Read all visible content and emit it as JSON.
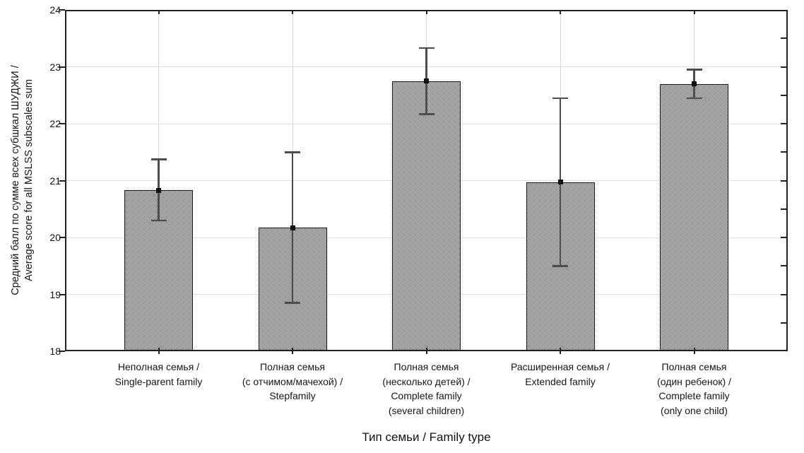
{
  "figure": {
    "background": "#ffffff"
  },
  "chart_data": {
    "type": "bar",
    "title": "",
    "xlabel": "Тип семьи / Family type",
    "ylabel": "Средний балл по сумме всех субшкал ШУДЖИ / Average score for all MSLSS subscales sum",
    "ylabel_lines": [
      "Средний балл по сумме всех субшкал ШУДЖИ /",
      "Average score for all MSLSS subscales sum"
    ],
    "ylim": [
      18,
      24
    ],
    "yticks": [
      18,
      19,
      20,
      21,
      22,
      23,
      24
    ],
    "right_axis_ticks": [
      18.5,
      19,
      19.5,
      20,
      20.5,
      21,
      21.5,
      22,
      22.5,
      23,
      23.5
    ],
    "grid": "major-horizontal-plus-category-vertical",
    "legend": null,
    "categories": [
      {
        "lines": [
          "Неполная семья /",
          "Single-parent family"
        ]
      },
      {
        "lines": [
          "Полная семья",
          "(с отчимом/мачехой) /",
          "Stepfamily"
        ]
      },
      {
        "lines": [
          "Полная семья",
          "(несколько детей) /",
          "Complete family",
          "(several children)"
        ]
      },
      {
        "lines": [
          "Расширенная семья /",
          "Extended family"
        ]
      },
      {
        "lines": [
          "Полная семья",
          "(один ребенок) /",
          "Complete family",
          "(only one child)"
        ]
      }
    ],
    "values": [
      20.83,
      20.17,
      22.75,
      20.97,
      22.7
    ],
    "error_bars": {
      "upper": [
        21.37,
        21.5,
        23.33,
        22.45,
        22.95
      ],
      "lower": [
        20.3,
        18.85,
        22.17,
        19.5,
        22.45
      ]
    },
    "colors": {
      "bar_pattern_dark": "#4a4a4a",
      "bar_pattern_light": "#ffffff",
      "bar_border": "#1c1c1c",
      "error_bar": "#4d4d4d",
      "mean_marker": "#111111",
      "gridline": "#dedede",
      "frame": "#222222",
      "text": "#111111"
    }
  }
}
